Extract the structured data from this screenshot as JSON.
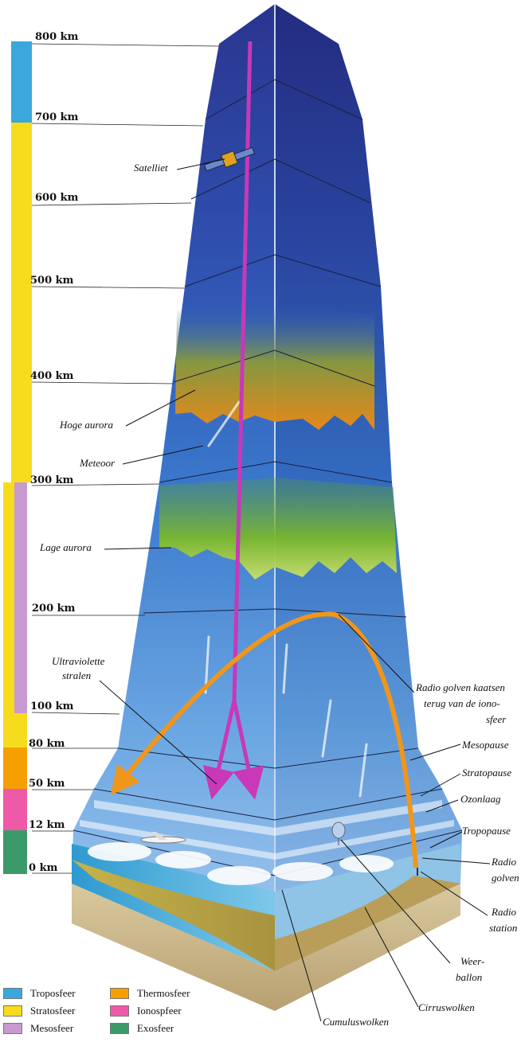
{
  "altitudes": [
    "800 km",
    "700 km",
    "600 km",
    "500 km",
    "400 km",
    "300 km",
    "200 km",
    "100 km",
    "80 km",
    "50 km",
    "12 km",
    "0 km"
  ],
  "labels": {
    "satellite": "Satelliet",
    "high_aurora": "Hoge aurora",
    "meteor": "Meteoor",
    "low_aurora": "Lage aurora",
    "uv_1": "Ultraviolette",
    "uv_2": "stralen",
    "radio_reflect_1": "Radio golven kaatsen",
    "radio_reflect_2": "terug van de iono-",
    "radio_reflect_3": "sfeer",
    "mesopause": "Mesopause",
    "stratopause": "Stratopause",
    "ozone": "Ozonlaag",
    "tropopause": "Tropopause",
    "radio_waves_1": "Radio",
    "radio_waves_2": "golven",
    "radio_station_1": "Radio",
    "radio_station_2": "station",
    "weather_balloon_1": "Weer-",
    "weather_balloon_2": "ballon",
    "cirrus": "Cirruswolken",
    "cumulus": "Cumuluswolken"
  },
  "legend": [
    {
      "label": "Troposfeer",
      "color": "#3aa8dc"
    },
    {
      "label": "Stratosfeer",
      "color": "#f7dc1e"
    },
    {
      "label": "Mesosfeer",
      "color": "#c89ad0"
    },
    {
      "label": "Thermosfeer",
      "color": "#f5a000"
    },
    {
      "label": "Ionospfeer",
      "color": "#ee5aa8"
    },
    {
      "label": "Exosfeer",
      "color": "#3c9a6a"
    }
  ]
}
